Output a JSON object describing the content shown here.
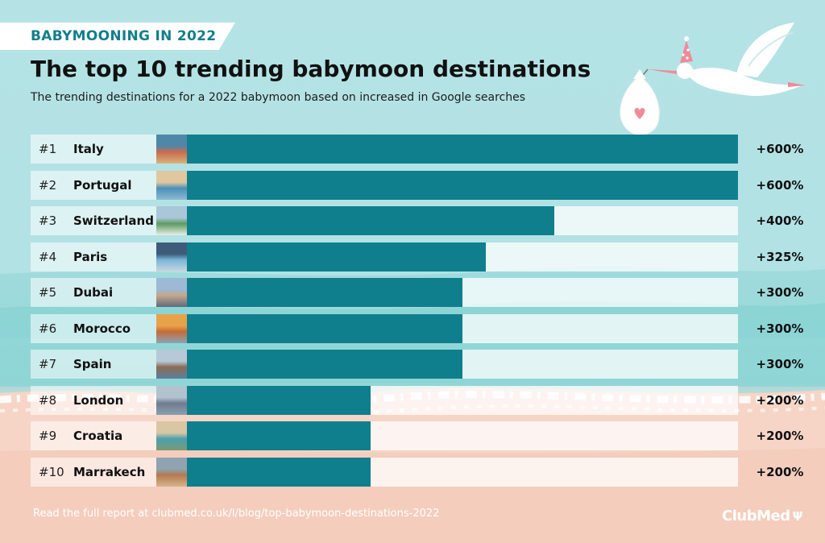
{
  "banner": "BABYMOONING IN 2022",
  "title": "The top 10 trending babymoon destinations",
  "subtitle": "The trending destinations for a 2022 babymoon based on increased in Google searches",
  "footer": "Read the full report at clubmed.co.uk/l/blog/top-babymoon-destinations-2022",
  "brand": "ClubMed",
  "colors": {
    "bar": "#0f7f8e",
    "banner_text": "#117f8c",
    "sea": "#9fdbdc",
    "sand": "#f5cdbd"
  },
  "chart_data": {
    "type": "bar",
    "orientation": "horizontal",
    "title": "The top 10 trending babymoon destinations",
    "subtitle": "The trending destinations for a 2022 babymoon based on increased in Google searches",
    "xlim": [
      0,
      600
    ],
    "grid": false,
    "legend": "none",
    "ranks": [
      "#1",
      "#2",
      "#3",
      "#4",
      "#5",
      "#6",
      "#7",
      "#8",
      "#9",
      "#10"
    ],
    "categories": [
      "Italy",
      "Portugal",
      "Switzerland",
      "Paris",
      "Dubai",
      "Morocco",
      "Spain",
      "London",
      "Croatia",
      "Marrakech"
    ],
    "values": [
      600,
      600,
      400,
      325,
      300,
      300,
      300,
      200,
      200,
      200
    ],
    "labels": [
      "+600%",
      "+600%",
      "+400%",
      "+325%",
      "+300%",
      "+300%",
      "+300%",
      "+200%",
      "+200%",
      "+200%"
    ],
    "thumbnails": [
      "italy-photo",
      "portugal-photo",
      "switzerland-photo",
      "paris-photo",
      "dubai-photo",
      "morocco-photo",
      "spain-photo",
      "london-photo",
      "croatia-photo",
      "marrakech-photo"
    ]
  }
}
